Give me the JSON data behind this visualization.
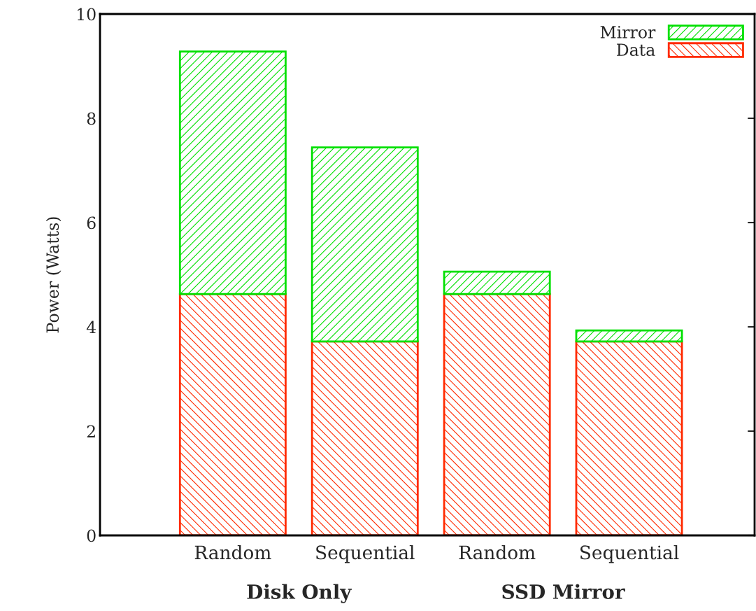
{
  "chart_data": {
    "type": "bar",
    "stacked": true,
    "ylabel": "Power (Watts)",
    "categories": [
      "Random",
      "Sequential",
      "Random",
      "Sequential"
    ],
    "series": [
      {
        "name": "Data",
        "color": "#ff2a00",
        "values": [
          4.63,
          3.72,
          4.63,
          3.72
        ]
      },
      {
        "name": "Mirror",
        "color": "#00e000",
        "values": [
          4.65,
          3.72,
          0.43,
          0.21
        ]
      }
    ],
    "ylim": [
      0,
      10
    ],
    "yticks": [
      0,
      2,
      4,
      6,
      8,
      10
    ],
    "grid": false,
    "legend": "top right",
    "annotations": [
      "Disk Only",
      "SSD Mirror"
    ]
  }
}
